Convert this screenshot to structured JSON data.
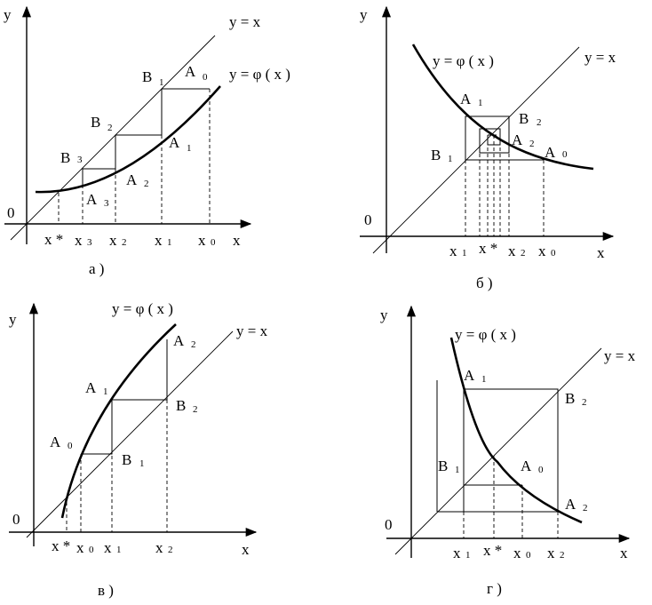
{
  "panels": {
    "a": {
      "caption": "а )",
      "y_axis": "y",
      "x_axis": "x",
      "origin": "0",
      "line_label": "y = x",
      "curve_label": "y = φ ( x )",
      "points": {
        "B1": "B",
        "B1s": "1",
        "A0": "A",
        "A0s": "0",
        "B2": "B",
        "B2s": "2",
        "A1": "A",
        "A1s": "1",
        "B3": "B",
        "B3s": "3",
        "A2": "A",
        "A2s": "2",
        "A3": "A",
        "A3s": "3"
      },
      "ticks": {
        "xs": "x *",
        "x3": "x",
        "x3s": "3",
        "x2": "x",
        "x2s": "2",
        "x1": "x",
        "x1s": "1",
        "x0": "x",
        "x0s": "0"
      }
    },
    "b": {
      "caption": "б )",
      "y_axis": "y",
      "x_axis": "x",
      "origin": "0",
      "line_label": "y = x",
      "curve_label": "y = φ ( x )",
      "points": {
        "A1": "A",
        "A1s": "1",
        "B2": "B",
        "B2s": "2",
        "A2": "A",
        "A2s": "2",
        "A0": "A",
        "A0s": "0",
        "B1": "B",
        "B1s": "1"
      },
      "ticks": {
        "x1": "x",
        "x1s": "1",
        "xs": "x *",
        "x2": "x",
        "x2s": "2",
        "x0": "x",
        "x0s": "0"
      }
    },
    "v": {
      "caption": "в )",
      "y_axis": "y",
      "x_axis": "x",
      "origin": "0",
      "line_label": "y = x",
      "curve_label": "y = φ ( x )",
      "points": {
        "A2": "A",
        "A2s": "2",
        "A1": "A",
        "A1s": "1",
        "B2": "B",
        "B2s": "2",
        "A0": "A",
        "A0s": "0",
        "B1": "B",
        "B1s": "1"
      },
      "ticks": {
        "xs": "x *",
        "x0": "x",
        "x0s": "0",
        "x1": "x",
        "x1s": "1",
        "x2": "x",
        "x2s": "2"
      }
    },
    "g": {
      "caption": "г )",
      "y_axis": "y",
      "x_axis": "x",
      "origin": "0",
      "line_label": "y = x",
      "curve_label": "y = φ ( x )",
      "points": {
        "A1": "A",
        "A1s": "1",
        "B2": "B",
        "B2s": "2",
        "B1": "B",
        "B1s": "1",
        "A0": "A",
        "A0s": "0",
        "A2": "A",
        "A2s": "2"
      },
      "ticks": {
        "x1": "x",
        "x1s": "1",
        "xs": "x *",
        "x0": "x",
        "x0s": "0",
        "x2": "x",
        "x2s": "2"
      }
    }
  }
}
